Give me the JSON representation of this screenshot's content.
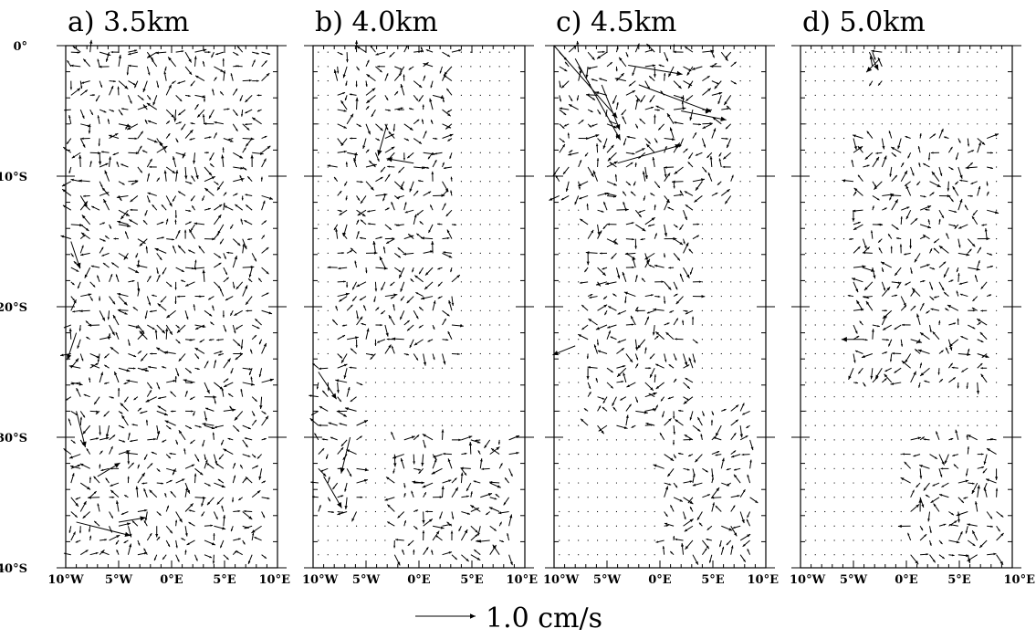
{
  "chart_data": [
    {
      "type": "vector-field",
      "title": "a) 3.5km",
      "x_ticks": [
        "10°W",
        "5°W",
        "0°E",
        "5°E",
        "10°E"
      ],
      "y_ticks": [
        "0°",
        "10°S",
        "20°S",
        "30°S",
        "40°S"
      ],
      "xlim": [
        -10,
        10
      ],
      "ylim": [
        -40,
        0
      ],
      "domain_east_edge": 9,
      "region": [
        {
          "lat": [
            -40,
            0
          ],
          "lon": [
            -10,
            9
          ]
        }
      ],
      "strong_currents": [
        {
          "lon": -9,
          "lat": -36.5,
          "u": 6,
          "v": -1.5
        },
        {
          "lon": -5,
          "lat": -36.5,
          "u": 3,
          "v": 0.5
        },
        {
          "lon": -7,
          "lat": -33,
          "u": 2.5,
          "v": 1.5
        },
        {
          "lon": -9,
          "lat": -28,
          "u": 1,
          "v": -4
        },
        {
          "lon": -9,
          "lat": -22,
          "u": -1,
          "v": -3
        },
        {
          "lon": -9.5,
          "lat": -15,
          "u": 1,
          "v": -3
        }
      ]
    },
    {
      "type": "vector-field",
      "title": "b) 4.0km",
      "x_ticks": [
        "10°W",
        "5°W",
        "0°E",
        "5°E",
        "10°E"
      ],
      "y_ticks": [
        "0°",
        "10°S",
        "20°S",
        "30°S",
        "40°S"
      ],
      "xlim": [
        -10,
        10
      ],
      "ylim": [
        -40,
        0
      ],
      "domain_east_edge": 9,
      "region": [
        {
          "lat": [
            -24,
            0
          ],
          "lon": [
            -8.5,
            3.5
          ]
        },
        {
          "lat": [
            -36,
            -24
          ],
          "lon": [
            -10,
            -5
          ]
        },
        {
          "lat": [
            -40,
            -30
          ],
          "lon": [
            -3,
            9
          ]
        }
      ],
      "strong_currents": [
        {
          "lon": -9,
          "lat": -33,
          "u": 2,
          "v": -3.5
        },
        {
          "lon": -6.5,
          "lat": -30,
          "u": -1,
          "v": -4
        },
        {
          "lon": -9.5,
          "lat": -25,
          "u": 2,
          "v": -3
        },
        {
          "lon": -3,
          "lat": -6,
          "u": -1,
          "v": -3.5
        },
        {
          "lon": -0.5,
          "lat": -9,
          "u": -3,
          "v": 0.5
        }
      ]
    },
    {
      "type": "vector-field",
      "title": "c) 4.5km",
      "x_ticks": [
        "10°W",
        "5°W",
        "0°E",
        "5°E",
        "10°E"
      ],
      "y_ticks": [
        "0°",
        "10°S",
        "20°S",
        "30°S",
        "40°S"
      ],
      "xlim": [
        -10,
        10
      ],
      "ylim": [
        -40,
        0
      ],
      "domain_east_edge": 9,
      "region": [
        {
          "lat": [
            -12,
            0
          ],
          "lon": [
            -10,
            7
          ]
        },
        {
          "lat": [
            -30,
            -12
          ],
          "lon": [
            -7,
            4
          ]
        },
        {
          "lat": [
            -40,
            -28
          ],
          "lon": [
            0,
            9
          ]
        }
      ],
      "strong_currents": [
        {
          "lon": -10,
          "lat": 0,
          "u": 7,
          "v": -8
        },
        {
          "lon": -8,
          "lat": -1,
          "u": 5,
          "v": -9
        },
        {
          "lon": -3,
          "lat": -1.5,
          "u": 6,
          "v": -1
        },
        {
          "lon": -4,
          "lat": -9,
          "u": 7,
          "v": 2
        },
        {
          "lon": -2,
          "lat": -3,
          "u": 8,
          "v": -3
        },
        {
          "lon": 2,
          "lat": -5,
          "u": 5,
          "v": -1
        },
        {
          "lon": -5.5,
          "lat": -3,
          "u": 2,
          "v": -5
        },
        {
          "lon": -8,
          "lat": -23,
          "u": -2.5,
          "v": -1
        }
      ]
    },
    {
      "type": "vector-field",
      "title": "d) 5.0km",
      "x_ticks": [
        "10°W",
        "5°W",
        "0°E",
        "5°E",
        "10°E"
      ],
      "y_ticks": [
        "0°",
        "10°S",
        "20°S",
        "30°S",
        "40°S"
      ],
      "xlim": [
        -10,
        10
      ],
      "ylim": [
        -40,
        0
      ],
      "domain_east_edge": 9,
      "region": [
        {
          "lat": [
            -3,
            0
          ],
          "lon": [
            -4,
            -2
          ]
        },
        {
          "lat": [
            -26,
            -7
          ],
          "lon": [
            -5,
            8
          ]
        },
        {
          "lat": [
            -40,
            -30
          ],
          "lon": [
            0,
            10
          ]
        }
      ],
      "strong_currents": [
        {
          "lon": -3.5,
          "lat": -0.5,
          "u": 1,
          "v": -2
        },
        {
          "lon": -2.5,
          "lat": -1,
          "u": -1.5,
          "v": -1.5
        },
        {
          "lon": -4,
          "lat": -22.5,
          "u": -2.5,
          "v": 0
        }
      ]
    }
  ],
  "reference_vector": {
    "label": "1.0 cm/s",
    "magnitude": 1.0,
    "units": "cm/s"
  }
}
